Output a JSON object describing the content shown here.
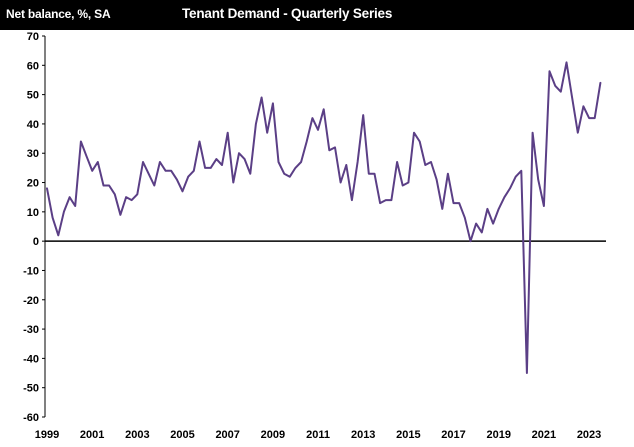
{
  "header": {
    "ylabel": "Net balance, %, SA",
    "title": "Tenant Demand - Quarterly Series"
  },
  "colors": {
    "line": "#5b3f86",
    "header_bg": "#000000",
    "zero_line": "#000000"
  },
  "chart_data": {
    "type": "line",
    "title": "Tenant Demand - Quarterly Series",
    "ylabel": "Net balance, %, SA",
    "xlabel": "",
    "ylim": [
      -60,
      70
    ],
    "yticks": [
      70,
      60,
      50,
      40,
      30,
      20,
      10,
      0,
      -10,
      -20,
      -30,
      -40,
      -50,
      -60
    ],
    "xlim": [
      1999.0,
      2023.75
    ],
    "xticks": [
      "1999",
      "2001",
      "2003",
      "2005",
      "2007",
      "2009",
      "2011",
      "2013",
      "2015",
      "2017",
      "2019",
      "2021",
      "2023"
    ],
    "grid": false,
    "series": [
      {
        "name": "Tenant Demand",
        "start": 1999.0,
        "step": 0.25,
        "values": [
          18,
          8,
          2,
          10,
          15,
          12,
          34,
          29,
          24,
          27,
          19,
          19,
          16,
          9,
          15,
          14,
          16,
          27,
          23,
          19,
          27,
          24,
          24,
          21,
          17,
          22,
          24,
          34,
          25,
          25,
          28,
          26,
          37,
          20,
          30,
          28,
          23,
          40,
          49,
          37,
          47,
          27,
          23,
          22,
          25,
          27,
          34,
          42,
          38,
          45,
          31,
          32,
          20,
          26,
          14,
          27,
          43,
          23,
          23,
          13,
          14,
          14,
          27,
          19,
          20,
          37,
          34,
          26,
          27,
          21,
          11,
          23,
          13,
          13,
          8,
          0,
          6,
          3,
          11,
          6,
          11,
          15,
          18,
          22,
          24,
          -45,
          37,
          21,
          12,
          58,
          53,
          51,
          61,
          49,
          37,
          46,
          42,
          42,
          54
        ]
      }
    ]
  }
}
